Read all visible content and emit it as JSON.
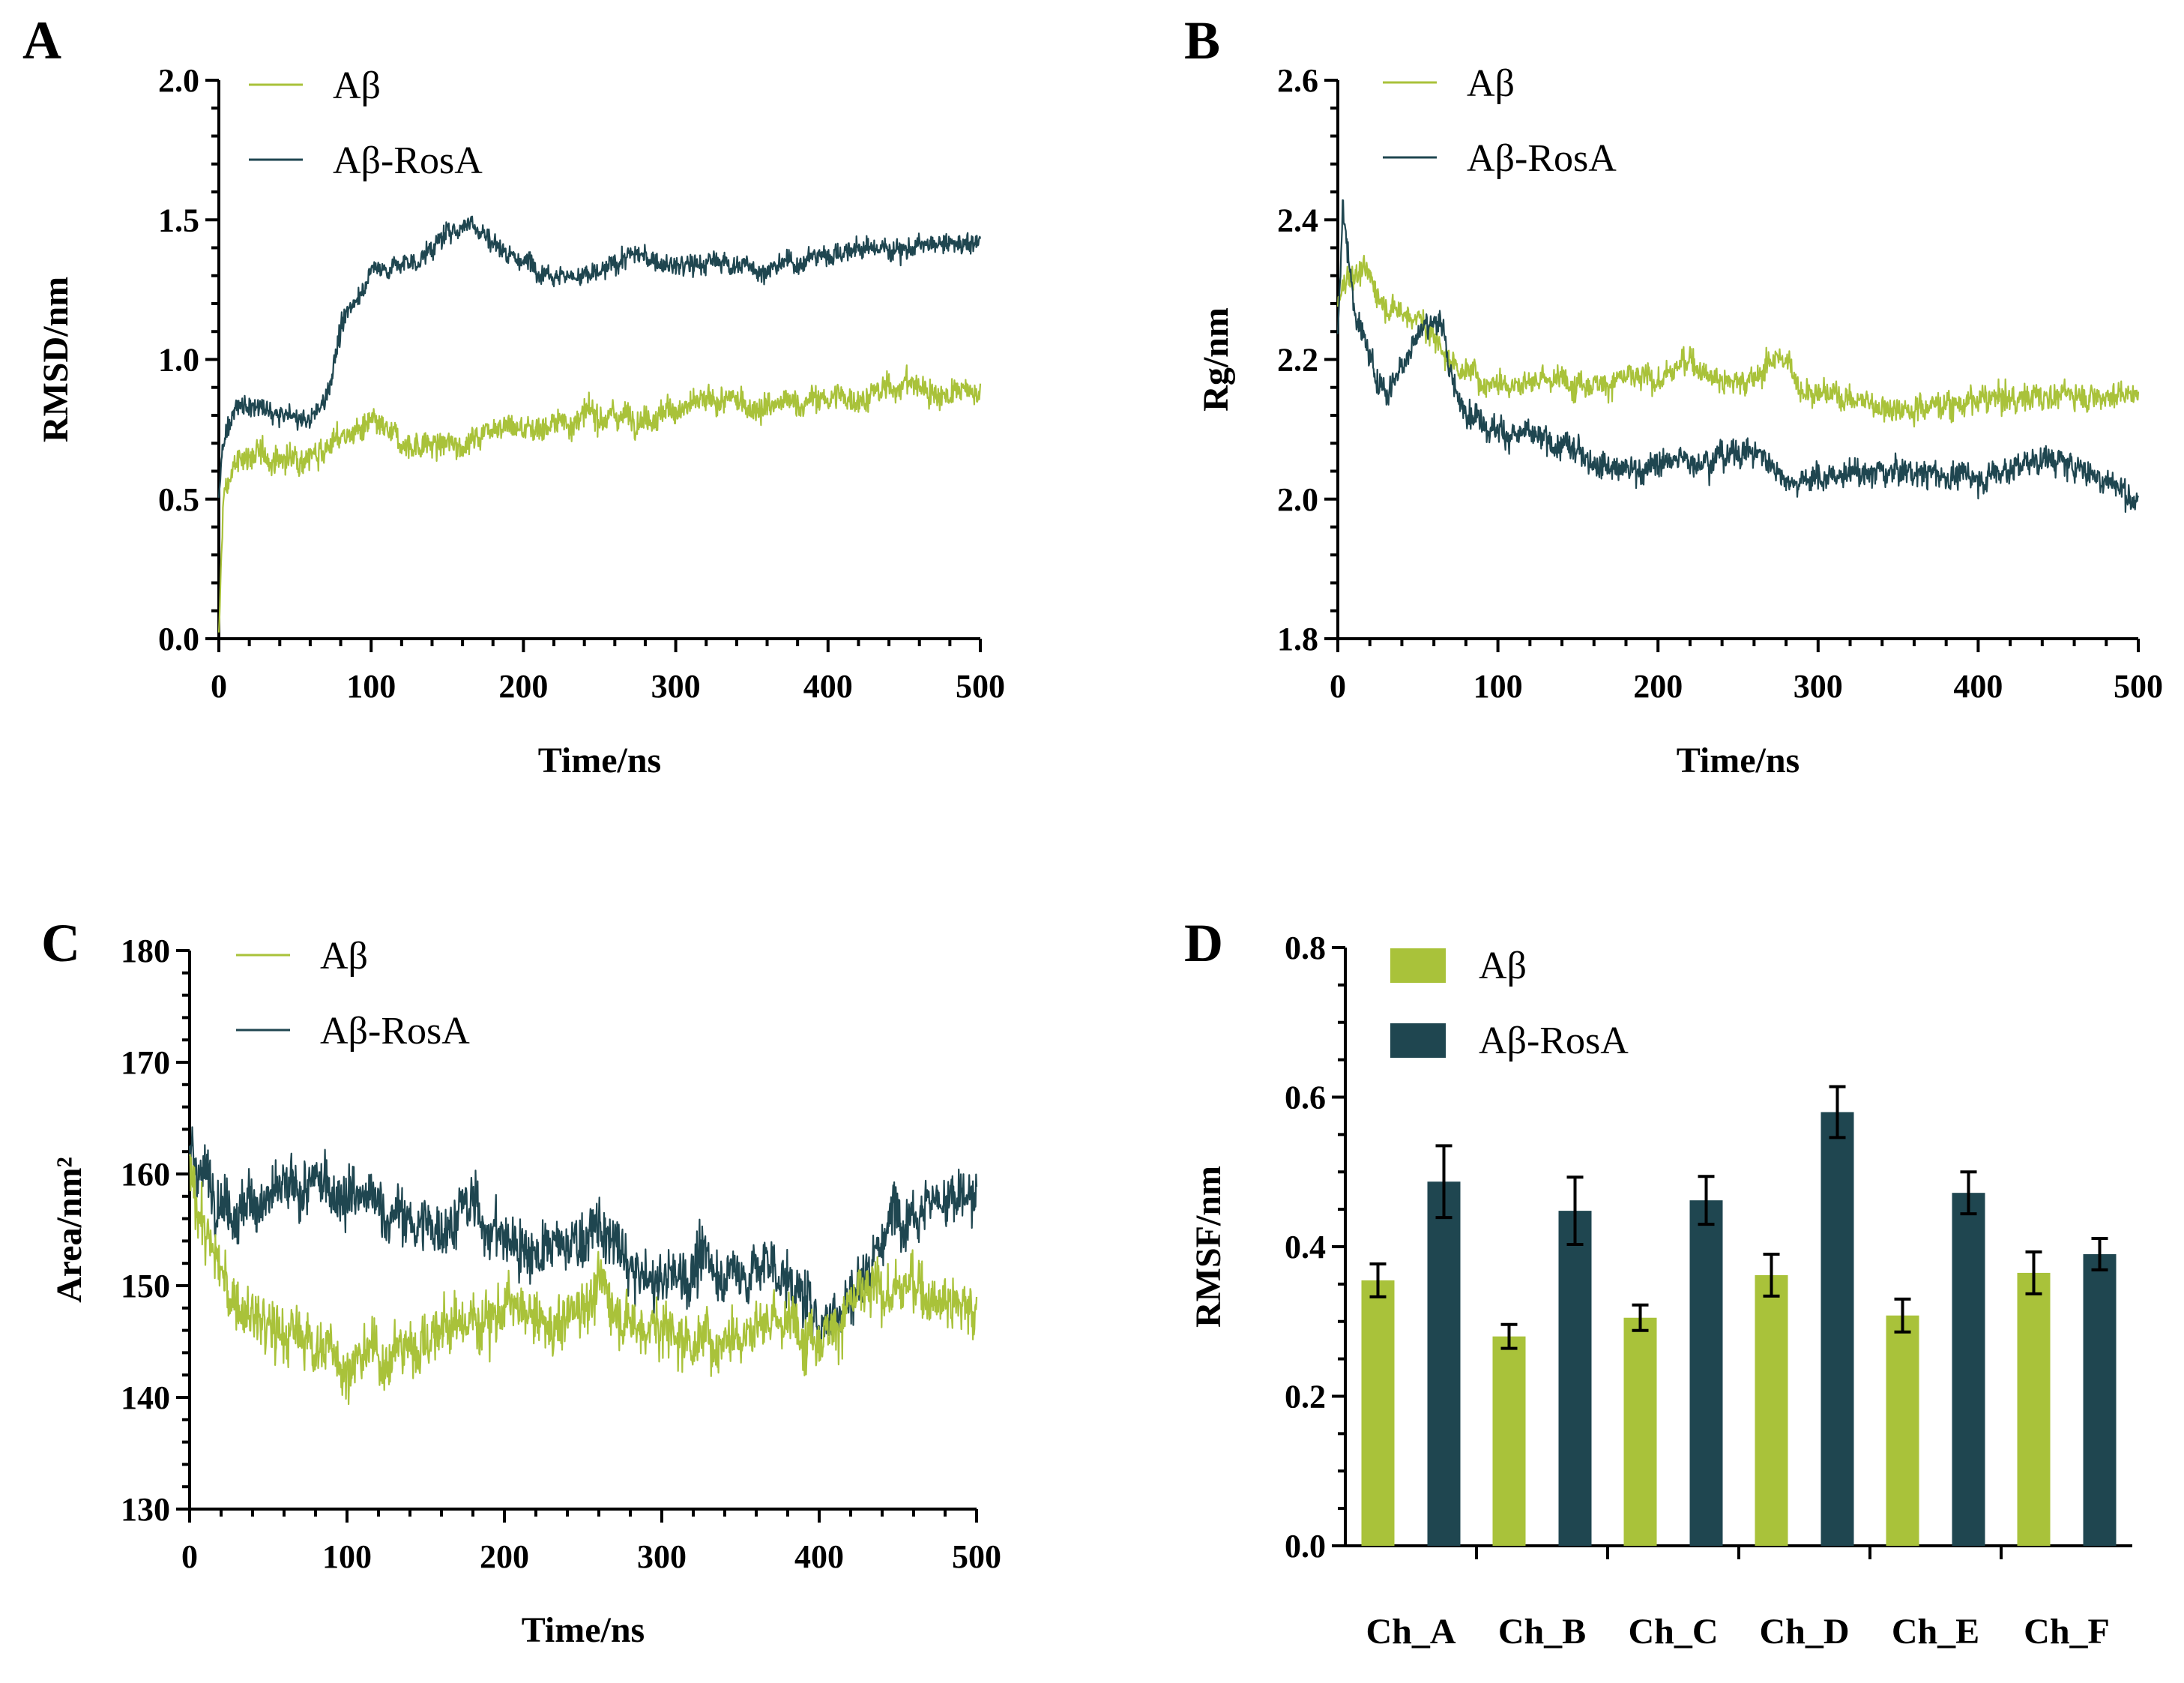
{
  "colors": {
    "ab": "#a9c23a",
    "abrosa": "#1f4650"
  },
  "chart_data": [
    {
      "panel": "A",
      "type": "line",
      "title": "",
      "xlabel": "Time/ns",
      "ylabel": "RMSD/nm",
      "xlim": [
        0,
        500
      ],
      "ylim": [
        0.0,
        2.0
      ],
      "xticks": [
        0,
        100,
        200,
        300,
        400,
        500
      ],
      "xtick_labels": [
        "0",
        "100",
        "200",
        "300",
        "400",
        "500"
      ],
      "yticks": [
        0.0,
        0.5,
        1.0,
        1.5,
        2.0
      ],
      "ytick_labels": [
        "0.0",
        "0.5",
        "1.0",
        "1.5",
        "2.0"
      ],
      "legend": "top-left",
      "noise": [
        0.045,
        0.035
      ],
      "series": [
        {
          "name": "Aβ",
          "color_key": "ab",
          "x": [
            0,
            3,
            10,
            20,
            40,
            60,
            80,
            100,
            120,
            150,
            170,
            180,
            200,
            230,
            250,
            280,
            300,
            330,
            360,
            400,
            430,
            450,
            470,
            500
          ],
          "y": [
            0.0,
            0.5,
            0.62,
            0.66,
            0.64,
            0.66,
            0.72,
            0.76,
            0.7,
            0.69,
            0.72,
            0.78,
            0.75,
            0.78,
            0.8,
            0.8,
            0.82,
            0.85,
            0.83,
            0.86,
            0.87,
            0.92,
            0.88,
            0.88
          ]
        },
        {
          "name": "Aβ-RosA",
          "color_key": "abrosa",
          "x": [
            0,
            3,
            10,
            20,
            40,
            60,
            70,
            80,
            90,
            100,
            130,
            150,
            165,
            180,
            200,
            230,
            250,
            270,
            300,
            330,
            360,
            400,
            430,
            460,
            500
          ],
          "y": [
            0.5,
            0.72,
            0.82,
            0.83,
            0.8,
            0.78,
            0.86,
            1.1,
            1.22,
            1.32,
            1.35,
            1.45,
            1.5,
            1.42,
            1.35,
            1.3,
            1.3,
            1.38,
            1.33,
            1.35,
            1.32,
            1.38,
            1.4,
            1.4,
            1.42
          ]
        }
      ]
    },
    {
      "panel": "B",
      "type": "line",
      "title": "",
      "xlabel": "Time/ns",
      "ylabel": "Rg/nm",
      "xlim": [
        0,
        500
      ],
      "ylim": [
        1.8,
        2.6
      ],
      "xticks": [
        0,
        100,
        200,
        300,
        400,
        500
      ],
      "xtick_labels": [
        "0",
        "100",
        "200",
        "300",
        "400",
        "500"
      ],
      "yticks": [
        1.8,
        2.0,
        2.2,
        2.4,
        2.6
      ],
      "ytick_labels": [
        "1.8",
        "2.0",
        "2.2",
        "2.4",
        "2.6"
      ],
      "legend": "top-left",
      "noise": [
        0.018,
        0.018
      ],
      "series": [
        {
          "name": "Aβ",
          "color_key": "ab",
          "x": [
            0,
            5,
            15,
            30,
            50,
            70,
            90,
            120,
            150,
            180,
            200,
            220,
            240,
            260,
            275,
            290,
            310,
            350,
            400,
            450,
            500
          ],
          "y": [
            2.28,
            2.32,
            2.33,
            2.28,
            2.26,
            2.2,
            2.17,
            2.17,
            2.17,
            2.17,
            2.17,
            2.2,
            2.17,
            2.17,
            2.21,
            2.16,
            2.15,
            2.13,
            2.14,
            2.15,
            2.15
          ]
        },
        {
          "name": "Aβ-RosA",
          "color_key": "abrosa",
          "x": [
            0,
            3,
            10,
            20,
            30,
            50,
            60,
            65,
            75,
            100,
            130,
            160,
            180,
            200,
            230,
            260,
            280,
            300,
            350,
            400,
            440,
            470,
            500
          ],
          "y": [
            2.24,
            2.42,
            2.28,
            2.2,
            2.15,
            2.24,
            2.26,
            2.24,
            2.14,
            2.1,
            2.08,
            2.06,
            2.04,
            2.05,
            2.06,
            2.07,
            2.03,
            2.03,
            2.04,
            2.03,
            2.06,
            2.04,
            2.0
          ]
        }
      ]
    },
    {
      "panel": "C",
      "type": "line",
      "title": "",
      "xlabel": "Time/ns",
      "ylabel": "Area/nm²",
      "xlim": [
        0,
        500
      ],
      "ylim": [
        130,
        180
      ],
      "xticks": [
        0,
        100,
        200,
        300,
        400,
        500
      ],
      "xtick_labels": [
        "0",
        "100",
        "200",
        "300",
        "400",
        "500"
      ],
      "yticks": [
        130,
        140,
        150,
        160,
        170,
        180
      ],
      "ytick_labels": [
        "130",
        "140",
        "150",
        "160",
        "170",
        "180"
      ],
      "legend": "top-left",
      "noise": [
        2.4,
        2.4
      ],
      "series": [
        {
          "name": "Aβ",
          "color_key": "ab",
          "x": [
            0,
            10,
            25,
            50,
            80,
            100,
            130,
            160,
            200,
            230,
            260,
            280,
            300,
            330,
            360,
            400,
            430,
            460,
            500
          ],
          "y": [
            160,
            155,
            149,
            146,
            145,
            143,
            144,
            146,
            148,
            146,
            150,
            147,
            146,
            145,
            147,
            146,
            149,
            150,
            148
          ]
        },
        {
          "name": "Aβ-RosA",
          "color_key": "abrosa",
          "x": [
            0,
            10,
            30,
            60,
            90,
            120,
            150,
            180,
            200,
            230,
            260,
            290,
            310,
            330,
            350,
            370,
            400,
            420,
            450,
            470,
            500
          ],
          "y": [
            162,
            160,
            157,
            158,
            159,
            157,
            155,
            157,
            154,
            153,
            155,
            150,
            151,
            152,
            151,
            152,
            147,
            149,
            157,
            158,
            157
          ]
        }
      ]
    },
    {
      "panel": "D",
      "type": "bar",
      "title": "",
      "xlabel": "",
      "ylabel": "RMSF/nm",
      "ylim": [
        0.0,
        0.8
      ],
      "yticks": [
        0.0,
        0.2,
        0.4,
        0.6,
        0.8
      ],
      "ytick_labels": [
        "0.0",
        "0.2",
        "0.4",
        "0.6",
        "0.8"
      ],
      "legend": "top-left",
      "categories": [
        "Ch_A",
        "Ch_B",
        "Ch_C",
        "Ch_D",
        "Ch_E",
        "Ch_F"
      ],
      "series": [
        {
          "name": "Aβ",
          "color_key": "ab",
          "values": [
            0.355,
            0.28,
            0.305,
            0.362,
            0.308,
            0.365
          ],
          "errors": [
            0.022,
            0.016,
            0.017,
            0.028,
            0.022,
            0.028
          ]
        },
        {
          "name": "Aβ-RosA",
          "color_key": "abrosa",
          "values": [
            0.487,
            0.448,
            0.462,
            0.58,
            0.472,
            0.39
          ],
          "errors": [
            0.048,
            0.045,
            0.032,
            0.034,
            0.028,
            0.021
          ]
        }
      ]
    }
  ]
}
